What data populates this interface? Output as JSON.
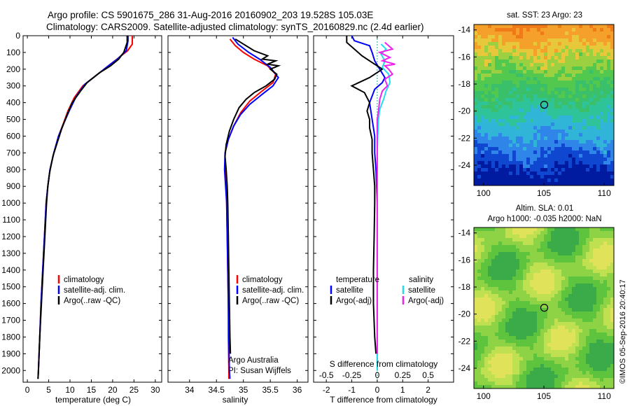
{
  "header": {
    "line1": "Argo profile: CS 5901675_286 31-Aug-2016 20160902_203 19.528S 105.03E",
    "line2": "Climatology: CARS2009. Satellite-adjusted climatology: synTS_20160829.nc (2.4d earlier)"
  },
  "credit": "©IMOS 05-Sep-2016 20:40:17",
  "colors": {
    "climatology": "#ff0000",
    "satellite": "#0000ff",
    "argo": "#000000",
    "sal_satellite": "#22ddee",
    "sal_argo": "#ee22ee"
  },
  "chart_data": [
    {
      "type": "line",
      "panel": "temperature",
      "xlabel": "temperature (deg C)",
      "xlim": [
        -1,
        31.5
      ],
      "xticks": [
        "0",
        "5",
        "10",
        "15",
        "20",
        "25",
        "30"
      ],
      "ylim": [
        2070,
        0
      ],
      "yticks": [
        "0",
        "100",
        "200",
        "300",
        "400",
        "500",
        "600",
        "700",
        "800",
        "900",
        "1000",
        "1100",
        "1200",
        "1300",
        "1400",
        "1500",
        "1600",
        "1700",
        "1800",
        "1900",
        "2000"
      ],
      "legend": [
        "climatology",
        "satellite-adj. clim.",
        "Argo(..raw -QC)"
      ],
      "series": [
        {
          "name": "climatology",
          "color": "climatology",
          "points": [
            [
              24.6,
              0
            ],
            [
              24.6,
              50
            ],
            [
              23.5,
              90
            ],
            [
              21.0,
              140
            ],
            [
              19.0,
              180
            ],
            [
              16.5,
              230
            ],
            [
              13.0,
              300
            ],
            [
              11.0,
              370
            ],
            [
              9.5,
              450
            ],
            [
              8.5,
              520
            ],
            [
              7.3,
              600
            ],
            [
              6.2,
              700
            ],
            [
              5.3,
              800
            ],
            [
              4.8,
              900
            ],
            [
              4.4,
              1000
            ],
            [
              4.0,
              1200
            ],
            [
              3.6,
              1400
            ],
            [
              3.2,
              1600
            ],
            [
              2.9,
              1800
            ],
            [
              2.6,
              2000
            ],
            [
              2.5,
              2050
            ]
          ]
        },
        {
          "name": "satellite-adj. clim.",
          "color": "satellite",
          "points": [
            [
              23.6,
              0
            ],
            [
              23.6,
              30
            ],
            [
              23.2,
              90
            ],
            [
              21.1,
              140
            ],
            [
              19.0,
              180
            ],
            [
              16.5,
              230
            ],
            [
              13.5,
              290
            ],
            [
              11.5,
              360
            ],
            [
              9.8,
              450
            ],
            [
              8.6,
              520
            ],
            [
              7.3,
              600
            ],
            [
              6.2,
              700
            ],
            [
              5.3,
              800
            ],
            [
              4.8,
              900
            ],
            [
              4.4,
              1000
            ],
            [
              4.0,
              1200
            ],
            [
              3.6,
              1400
            ],
            [
              3.2,
              1600
            ],
            [
              2.9,
              1800
            ],
            [
              2.6,
              2000
            ],
            [
              2.5,
              2050
            ]
          ]
        },
        {
          "name": "Argo(..raw -QC)",
          "color": "argo",
          "points": [
            [
              23.4,
              0
            ],
            [
              23.4,
              40
            ],
            [
              22.6,
              100
            ],
            [
              21.4,
              140
            ],
            [
              19.5,
              180
            ],
            [
              17.0,
              220
            ],
            [
              14.0,
              280
            ],
            [
              12.5,
              330
            ],
            [
              10.5,
              400
            ],
            [
              9.2,
              480
            ],
            [
              8.0,
              560
            ],
            [
              7.0,
              640
            ],
            [
              6.0,
              720
            ],
            [
              5.2,
              820
            ],
            [
              4.8,
              900
            ],
            [
              4.5,
              1000
            ],
            [
              4.1,
              1200
            ],
            [
              3.7,
              1400
            ],
            [
              3.3,
              1600
            ],
            [
              2.9,
              1800
            ],
            [
              2.6,
              2000
            ],
            [
              2.5,
              2050
            ]
          ]
        }
      ]
    },
    {
      "type": "line",
      "panel": "salinity",
      "xlabel": "salinity",
      "xlim": [
        33.6,
        36.2
      ],
      "xticks": [
        "34",
        "34.5",
        "35",
        "35.5",
        "36"
      ],
      "ylim": [
        2070,
        0
      ],
      "legend": [
        "climatology",
        "satellite-adj. clim.",
        "Argo(..raw -QC)"
      ],
      "annotation": [
        "Argo Australia",
        "PI: Susan Wijffels"
      ],
      "series": [
        {
          "name": "climatology",
          "color": "climatology",
          "points": [
            [
              34.75,
              20
            ],
            [
              34.85,
              60
            ],
            [
              35.0,
              100
            ],
            [
              35.2,
              140
            ],
            [
              35.45,
              180
            ],
            [
              35.6,
              230
            ],
            [
              35.55,
              280
            ],
            [
              35.35,
              330
            ],
            [
              35.12,
              390
            ],
            [
              34.95,
              460
            ],
            [
              34.82,
              540
            ],
            [
              34.72,
              620
            ],
            [
              34.66,
              700
            ],
            [
              34.66,
              800
            ],
            [
              34.68,
              900
            ],
            [
              34.69,
              1000
            ],
            [
              34.7,
              1200
            ],
            [
              34.71,
              1400
            ],
            [
              34.72,
              1600
            ],
            [
              34.72,
              1800
            ],
            [
              34.73,
              2000
            ],
            [
              34.73,
              2050
            ]
          ]
        },
        {
          "name": "satellite-adj. clim.",
          "color": "satellite",
          "points": [
            [
              34.8,
              10
            ],
            [
              34.9,
              50
            ],
            [
              35.1,
              100
            ],
            [
              35.3,
              140
            ],
            [
              35.5,
              190
            ],
            [
              35.65,
              250
            ],
            [
              35.55,
              300
            ],
            [
              35.35,
              350
            ],
            [
              35.12,
              410
            ],
            [
              34.95,
              470
            ],
            [
              34.82,
              540
            ],
            [
              34.72,
              620
            ],
            [
              34.66,
              700
            ],
            [
              34.65,
              800
            ],
            [
              34.67,
              900
            ],
            [
              34.69,
              1000
            ],
            [
              34.7,
              1200
            ],
            [
              34.71,
              1400
            ],
            [
              34.72,
              1600
            ],
            [
              34.73,
              1800
            ],
            [
              34.74,
              2000
            ],
            [
              34.75,
              2050
            ]
          ]
        },
        {
          "name": "Argo(..raw -QC)",
          "color": "argo",
          "points": [
            [
              34.85,
              20
            ],
            [
              35.05,
              60
            ],
            [
              35.2,
              90
            ],
            [
              35.45,
              120
            ],
            [
              35.35,
              140
            ],
            [
              35.6,
              150
            ],
            [
              35.45,
              170
            ],
            [
              35.65,
              180
            ],
            [
              35.5,
              200
            ],
            [
              35.62,
              230
            ],
            [
              35.58,
              260
            ],
            [
              35.42,
              300
            ],
            [
              35.2,
              340
            ],
            [
              35.05,
              380
            ],
            [
              34.92,
              430
            ],
            [
              34.82,
              500
            ],
            [
              34.74,
              570
            ],
            [
              34.68,
              650
            ],
            [
              34.66,
              720
            ],
            [
              34.68,
              800
            ],
            [
              34.7,
              900
            ],
            [
              34.71,
              1000
            ],
            [
              34.72,
              1200
            ],
            [
              34.73,
              1400
            ],
            [
              34.74,
              1600
            ],
            [
              34.75,
              1800
            ],
            [
              34.76,
              1900
            ]
          ]
        }
      ]
    },
    {
      "type": "line",
      "panel": "difference",
      "xlabel": "T difference from climatology",
      "xlabel_top": "S difference from climatology",
      "xlim": [
        -2.5,
        3.0
      ],
      "xticks": [
        "-2",
        "-1",
        "0",
        "1",
        "2"
      ],
      "s_xticks": [
        "-0.5",
        "-0.25",
        "0",
        "0.25",
        "0.5"
      ],
      "ylim": [
        2070,
        0
      ],
      "legend_titles": [
        "temperature",
        "salinity"
      ],
      "legend": [
        "satellite",
        "Argo(-adj)",
        "satellite",
        "Argo(-adj)"
      ],
      "series": [
        {
          "name": "satellite",
          "group": "temperature",
          "color": "satellite",
          "points": [
            [
              -1.0,
              0
            ],
            [
              -0.9,
              30
            ],
            [
              -0.3,
              60
            ],
            [
              -0.2,
              100
            ],
            [
              -0.1,
              150
            ],
            [
              0.1,
              200
            ],
            [
              0.3,
              250
            ],
            [
              0.2,
              280
            ],
            [
              -0.1,
              320
            ],
            [
              -0.3,
              400
            ],
            [
              -0.2,
              500
            ],
            [
              -0.1,
              600
            ],
            [
              -0.1,
              700
            ],
            [
              -0.05,
              800
            ],
            [
              0.0,
              1000
            ],
            [
              0.0,
              1400
            ],
            [
              0.0,
              2000
            ]
          ]
        },
        {
          "name": "Argo(-adj)",
          "group": "temperature",
          "color": "argo",
          "points": [
            [
              -1.2,
              0
            ],
            [
              -1.2,
              40
            ],
            [
              -0.9,
              80
            ],
            [
              -0.6,
              120
            ],
            [
              -0.2,
              160
            ],
            [
              0.2,
              200
            ],
            [
              -0.3,
              250
            ],
            [
              -1.0,
              300
            ],
            [
              -0.5,
              340
            ],
            [
              -0.3,
              400
            ],
            [
              -0.4,
              450
            ],
            [
              -0.3,
              500
            ],
            [
              -0.3,
              550
            ],
            [
              -0.2,
              620
            ],
            [
              -0.2,
              700
            ],
            [
              -0.15,
              800
            ],
            [
              -0.1,
              900
            ],
            [
              -0.1,
              1000
            ],
            [
              -0.12,
              1200
            ],
            [
              -0.15,
              1400
            ],
            [
              -0.15,
              1600
            ],
            [
              -0.1,
              1800
            ],
            [
              -0.05,
              1900
            ]
          ]
        },
        {
          "name": "satellite",
          "group": "salinity",
          "color": "sal_satellite",
          "points": [
            [
              0.15,
              50
            ],
            [
              0.35,
              80
            ],
            [
              0.15,
              110
            ],
            [
              0.3,
              150
            ],
            [
              0.2,
              190
            ],
            [
              0.45,
              230
            ],
            [
              0.5,
              280
            ],
            [
              0.35,
              330
            ],
            [
              0.25,
              380
            ],
            [
              0.1,
              440
            ],
            [
              0.05,
              500
            ],
            [
              0.02,
              600
            ],
            [
              0.0,
              700
            ],
            [
              0.0,
              800
            ],
            [
              0.0,
              1000
            ],
            [
              0.0,
              1400
            ],
            [
              0.0,
              1800
            ],
            [
              0.0,
              2000
            ]
          ]
        },
        {
          "name": "Argo(-adj)",
          "group": "salinity",
          "color": "sal_argo",
          "points": [
            [
              0.3,
              40
            ],
            [
              0.6,
              80
            ],
            [
              0.1,
              100
            ],
            [
              0.5,
              130
            ],
            [
              0.2,
              150
            ],
            [
              0.7,
              170
            ],
            [
              0.3,
              180
            ],
            [
              0.45,
              200
            ],
            [
              0.6,
              230
            ],
            [
              0.3,
              260
            ],
            [
              0.4,
              300
            ],
            [
              0.2,
              330
            ],
            [
              0.1,
              380
            ],
            [
              0.05,
              450
            ],
            [
              0.0,
              500
            ],
            [
              0.0,
              1000
            ],
            [
              0.0,
              1500
            ],
            [
              0.0,
              1900
            ]
          ]
        }
      ]
    }
  ],
  "maps": [
    {
      "title": "sat. SST: 23 Argo: 23",
      "subtitle": "",
      "xticks": [
        "100",
        "105",
        "110"
      ],
      "yticks": [
        "-14",
        "-16",
        "-18",
        "-20",
        "-22",
        "-24"
      ],
      "xlim": [
        99.2,
        110.8
      ],
      "ylim": [
        -25.5,
        -13.6
      ],
      "marker": [
        105.03,
        -19.53
      ],
      "field": "sst"
    },
    {
      "title": "Altim. SLA: 0.01",
      "subtitle": "Argo h1000: -0.035 h2000: NaN",
      "xticks": [
        "100",
        "105",
        "110"
      ],
      "yticks": [
        "-14",
        "-16",
        "-18",
        "-20",
        "-22",
        "-24"
      ],
      "xlim": [
        99.2,
        110.8
      ],
      "ylim": [
        -25.5,
        -13.6
      ],
      "marker": [
        105.03,
        -19.53
      ],
      "field": "sla"
    }
  ]
}
